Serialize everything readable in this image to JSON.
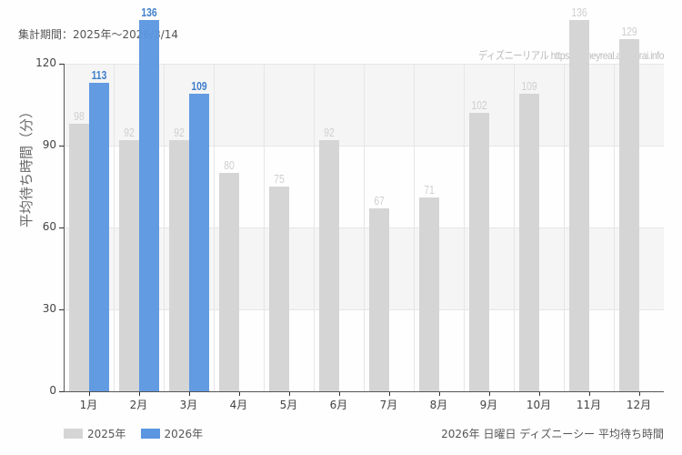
{
  "header": {
    "period": "集計期間：2025年～2026/3/14",
    "credit": "ディズニーリアル https://disneyreal.asumirai.info"
  },
  "footer": {
    "caption": "2026年 日曜日 ディズニーシー 平均待ち時間"
  },
  "colors": {
    "s2025": "#d4d5d4",
    "s2026": "#5b96e0",
    "band": "#f4f5f4"
  },
  "chart_data": {
    "type": "bar",
    "title": "2026年 日曜日 ディズニーシー 平均待ち時間",
    "subtitle": "集計期間：2025年～2026/3/14",
    "xlabel": "",
    "ylabel": "平均待ち時間（分）",
    "ylim": [
      0,
      120
    ],
    "yticks": [
      "0",
      "30",
      "60",
      "90",
      "120"
    ],
    "grid": true,
    "legend_position": "bottom-left",
    "categories": [
      "1月",
      "2月",
      "3月",
      "4月",
      "5月",
      "6月",
      "7月",
      "8月",
      "9月",
      "10月",
      "11月",
      "12月"
    ],
    "series": [
      {
        "name": "2025年",
        "values": [
          98,
          92,
          92,
          80,
          75,
          92,
          67,
          71,
          102,
          109,
          136,
          129
        ]
      },
      {
        "name": "2026年",
        "values": [
          113,
          136,
          109,
          null,
          null,
          null,
          null,
          null,
          null,
          null,
          null,
          null
        ]
      }
    ]
  }
}
